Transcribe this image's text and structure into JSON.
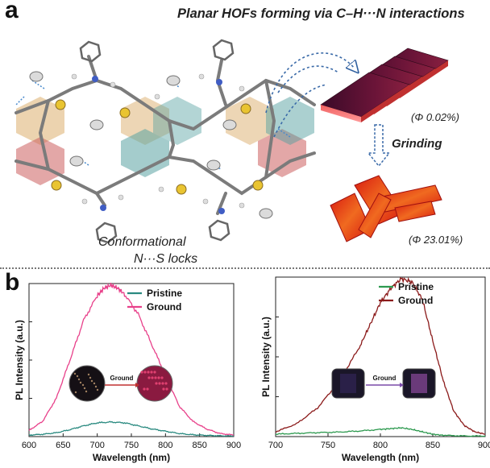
{
  "panel_a": {
    "letter": "a",
    "title": "Planar HOFs forming via C–H···N interactions",
    "lock_label_line1": "Conformational",
    "lock_label_line2": "N···S locks",
    "qy_pristine": "(Φ 0.02%)",
    "process_label": "Grinding",
    "qy_ground": "(Φ 23.01%)",
    "colors": {
      "pristine_crystal": "#5a1030",
      "ground_crystal": "#e8341c"
    }
  },
  "panel_b": {
    "letter": "b",
    "inset_arrow_label": "Ground"
  },
  "chart_data": [
    {
      "type": "line",
      "xlabel": "Wavelength (nm)",
      "ylabel": "PL Intensity (a.u.)",
      "xlim": [
        600,
        900
      ],
      "xticks": [
        "600",
        "650",
        "700",
        "750",
        "800",
        "850",
        "900"
      ],
      "ylim": [
        0,
        1.0
      ],
      "grid": false,
      "legend_position": "top-right",
      "series": [
        {
          "name": "Pristine",
          "color": "#2a8a80",
          "x": [
            600,
            620,
            640,
            660,
            680,
            700,
            720,
            740,
            760,
            780,
            800,
            820,
            840,
            860,
            880,
            900
          ],
          "y": [
            0.01,
            0.015,
            0.025,
            0.045,
            0.07,
            0.09,
            0.095,
            0.09,
            0.07,
            0.05,
            0.035,
            0.02,
            0.012,
            0.008,
            0.005,
            0.004
          ]
        },
        {
          "name": "Ground",
          "color": "#e8408a",
          "x": [
            600,
            620,
            640,
            660,
            680,
            700,
            710,
            720,
            730,
            740,
            760,
            780,
            800,
            820,
            840,
            860,
            880,
            900
          ],
          "y": [
            0.04,
            0.1,
            0.25,
            0.5,
            0.76,
            0.92,
            0.97,
            0.99,
            0.97,
            0.93,
            0.8,
            0.6,
            0.4,
            0.2,
            0.1,
            0.05,
            0.02,
            0.01
          ]
        }
      ]
    },
    {
      "type": "line",
      "xlabel": "Wavelength (nm)",
      "ylabel": "PL Intensity (a.u.)",
      "xlim": [
        700,
        900
      ],
      "xticks": [
        "700",
        "750",
        "800",
        "850",
        "900"
      ],
      "ylim": [
        0,
        1.0
      ],
      "grid": false,
      "legend_position": "top-right",
      "series": [
        {
          "name": "Pristine",
          "color": "#2e9a50",
          "x": [
            700,
            720,
            740,
            760,
            780,
            800,
            810,
            820,
            830,
            840,
            850,
            860,
            880,
            900
          ],
          "y": [
            0.015,
            0.02,
            0.025,
            0.028,
            0.035,
            0.045,
            0.05,
            0.055,
            0.045,
            0.03,
            0.015,
            0.008,
            0.004,
            0.003
          ]
        },
        {
          "name": "Ground",
          "color": "#8b1a1a",
          "x": [
            700,
            720,
            740,
            760,
            780,
            790,
            800,
            810,
            820,
            830,
            840,
            850,
            860,
            870,
            880,
            890,
            900
          ],
          "y": [
            0.03,
            0.08,
            0.18,
            0.34,
            0.56,
            0.7,
            0.84,
            0.93,
            0.99,
            0.97,
            0.86,
            0.6,
            0.35,
            0.16,
            0.07,
            0.03,
            0.015
          ]
        }
      ]
    }
  ]
}
